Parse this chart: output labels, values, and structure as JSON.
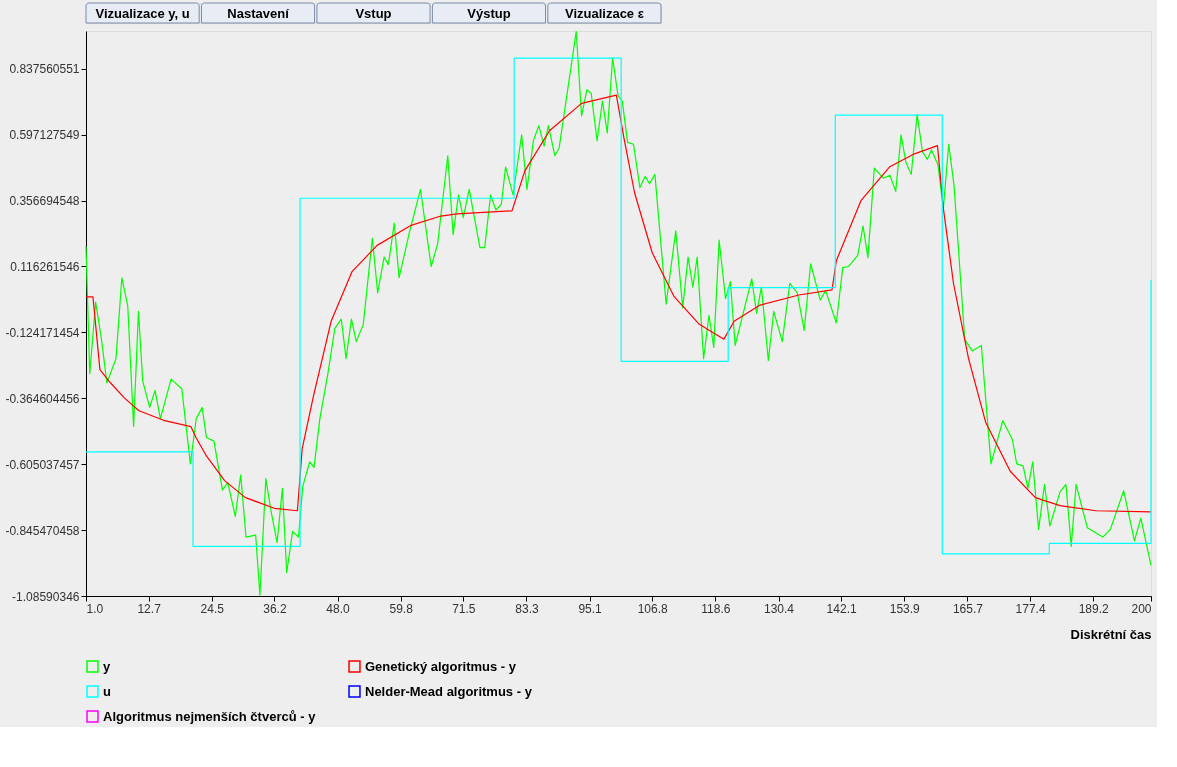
{
  "chart_data": {
    "type": "line",
    "xlabel": "Diskrétní čas",
    "annotations": [
      "Vizualizace y, u",
      "Nastavení",
      "Vstup",
      "Výstup",
      "Vizualizace ε"
    ],
    "xlim": [
      1,
      200
    ],
    "ylim": [
      -1.08590346,
      0.975
    ],
    "xticks": [
      {
        "value": 1,
        "label": "1.0"
      },
      12.7,
      24.5,
      36.2,
      {
        "value": 48,
        "label": "48.0"
      },
      59.8,
      71.5,
      83.3,
      95.1,
      106.8,
      118.6,
      130.4,
      142.1,
      153.9,
      165.7,
      177.4,
      189.2,
      200
    ],
    "yticks": [
      -1.08590346,
      -0.845470458,
      -0.605037457,
      -0.364604456,
      -0.124171454,
      0.116261546,
      0.356694548,
      0.597127549,
      0.837560551
    ],
    "grid": false,
    "legend": "bottom",
    "series": [
      {
        "name": "y",
        "color": "#00ff00",
        "x": [
          1,
          1.7,
          2.8,
          3.9,
          4.9,
          6.6,
          7.7,
          8.8,
          9.9,
          10.8,
          11.6,
          12.9,
          13.9,
          14.9,
          16.9,
          18.9,
          20.5,
          21.6,
          22.7,
          23.5,
          24.9,
          26.5,
          27.5,
          28.9,
          29.9,
          30.9,
          32.7,
          33.5,
          34.6,
          35.5,
          36.7,
          37.7,
          38.5,
          39.6,
          40.7,
          41.5,
          42.8,
          43.6,
          44.7,
          46.2,
          47.5,
          48.7,
          49.6,
          50.6,
          51.5,
          52.8,
          54.5,
          55.5,
          56.7,
          57.5,
          58.6,
          59.5,
          61.5,
          63.5,
          65.5,
          66.7,
          68.6,
          69.6,
          70.6,
          71.5,
          72.6,
          74.6,
          75.5,
          76.6,
          77.6,
          78.6,
          79.4,
          80.8,
          82.4,
          83.4,
          84.6,
          85.6,
          86.6,
          87.4,
          88.6,
          89.4,
          92.6,
          93.6,
          94.6,
          95.4,
          96.5,
          97.5,
          98.4,
          99.4,
          100.4,
          101.2,
          102.2,
          103.3,
          104.5,
          105.5,
          106.3,
          107.3,
          109.4,
          111.2,
          112.5,
          113.5,
          114.4,
          115.2,
          116.4,
          117.4,
          118.3,
          119.3,
          120.5,
          121.4,
          122.3,
          125.4,
          126.3,
          127.2,
          128.5,
          129.5,
          131.1,
          132.5,
          133.9,
          135.2,
          136.4,
          138.2,
          139.2,
          141.2,
          142.4,
          143.5,
          145.2,
          146.2,
          147.1,
          148.3,
          150,
          151.2,
          152.3,
          153.3,
          154.2,
          155.2,
          156.3,
          157.3,
          158.2,
          159,
          160.2,
          161.2,
          162.2,
          163.2,
          165.2,
          166.6,
          168.3,
          170.1,
          172.3,
          174.1,
          174.9,
          176.1,
          177,
          177.9,
          179,
          180.1,
          181.1,
          183,
          184.1,
          185.1,
          186,
          188.1,
          191,
          192.4,
          194.9,
          196.9,
          198.1,
          200
        ],
        "values": [
          0.19,
          -0.275,
          -0.014,
          -0.151,
          -0.309,
          -0.22,
          0.075,
          -0.028,
          -0.467,
          -0.048,
          -0.302,
          -0.398,
          -0.336,
          -0.439,
          -0.295,
          -0.33,
          -0.604,
          -0.439,
          -0.398,
          -0.508,
          -0.521,
          -0.7,
          -0.672,
          -0.796,
          -0.644,
          -0.871,
          -0.864,
          -1.083,
          -0.658,
          -0.768,
          -0.891,
          -0.693,
          -1.001,
          -0.85,
          -0.871,
          -0.686,
          -0.597,
          -0.617,
          -0.439,
          -0.275,
          -0.11,
          -0.076,
          -0.22,
          -0.076,
          -0.158,
          -0.096,
          0.219,
          0.02,
          0.15,
          0.123,
          0.274,
          0.075,
          0.246,
          0.397,
          0.116,
          0.198,
          0.52,
          0.232,
          0.377,
          0.294,
          0.397,
          0.185,
          0.185,
          0.377,
          0.322,
          0.342,
          0.479,
          0.377,
          0.596,
          0.397,
          0.575,
          0.63,
          0.555,
          0.63,
          0.52,
          0.548,
          0.973,
          0.665,
          0.761,
          0.747,
          0.575,
          0.719,
          0.603,
          0.877,
          0.74,
          0.719,
          0.569,
          0.562,
          0.404,
          0.445,
          0.418,
          0.452,
          -0.021,
          0.246,
          -0.035,
          0.15,
          0.041,
          0.15,
          -0.22,
          -0.062,
          -0.179,
          0.212,
          -0.001,
          0.061,
          -0.172,
          0.071,
          -0.055,
          0.041,
          -0.227,
          -0.048,
          -0.158,
          0.054,
          0.02,
          -0.117,
          0.126,
          -0.007,
          0.028,
          -0.09,
          0.112,
          0.116,
          0.157,
          0.263,
          0.148,
          0.475,
          0.438,
          0.449,
          0.39,
          0.596,
          0.496,
          0.452,
          0.671,
          0.534,
          0.507,
          0.541,
          0.486,
          0.328,
          0.562,
          0.411,
          -0.151,
          -0.192,
          -0.172,
          -0.604,
          -0.446,
          -0.515,
          -0.604,
          -0.611,
          -0.693,
          -0.597,
          -0.843,
          -0.679,
          -0.83,
          -0.706,
          -0.679,
          -0.905,
          -0.679,
          -0.837,
          -0.871,
          -0.843,
          -0.702,
          -0.885,
          -0.802,
          -0.974
        ]
      },
      {
        "name": "Genetický algoritmus - y",
        "color": "#ff0000",
        "x": [
          1,
          2.3,
          3.6,
          5.6,
          8.2,
          10.9,
          15.5,
          20.6,
          21.5,
          23.5,
          26.9,
          30.8,
          36.2,
          40.5,
          41.4,
          43.5,
          46.8,
          50.7,
          55.4,
          61.6,
          67.3,
          70.3,
          80.6,
          83,
          87.6,
          93.6,
          100.1,
          101.6,
          103.5,
          106.8,
          110.9,
          115.6,
          120.2,
          122.1,
          126.8,
          134.2,
          140.4,
          141.2,
          145.8,
          151.2,
          155.8,
          160.1,
          161.2,
          163.1,
          165.9,
          169.1,
          173.7,
          178.4,
          183,
          189.7,
          200
        ],
        "values": [
          0.005,
          0.005,
          -0.26,
          -0.309,
          -0.364,
          -0.41,
          -0.445,
          -0.468,
          -0.506,
          -0.575,
          -0.665,
          -0.727,
          -0.766,
          -0.775,
          -0.548,
          -0.357,
          -0.084,
          0.097,
          0.193,
          0.265,
          0.3,
          0.308,
          0.319,
          0.465,
          0.611,
          0.711,
          0.741,
          0.576,
          0.385,
          0.166,
          0.006,
          -0.095,
          -0.149,
          -0.084,
          -0.026,
          0.012,
          0.031,
          0.137,
          0.356,
          0.48,
          0.527,
          0.557,
          0.328,
          0.054,
          -0.219,
          -0.452,
          -0.631,
          -0.727,
          -0.756,
          -0.775,
          -0.779
        ]
      },
      {
        "name": "u",
        "color": "#00ffff",
        "type": "step",
        "x": [
          1,
          21,
          41,
          81,
          101,
          121,
          141,
          161,
          181,
          200
        ],
        "values": [
          -0.56,
          -0.905,
          0.365,
          0.876,
          -0.23,
          0.039,
          0.668,
          -0.932,
          -0.894,
          0.068
        ]
      },
      {
        "name": "Nelder-Mead algoritmus - y",
        "color": "#0000ff"
      },
      {
        "name": "Algoritmus nejmenších čtverců - y",
        "color": "#ff00ff"
      }
    ]
  }
}
